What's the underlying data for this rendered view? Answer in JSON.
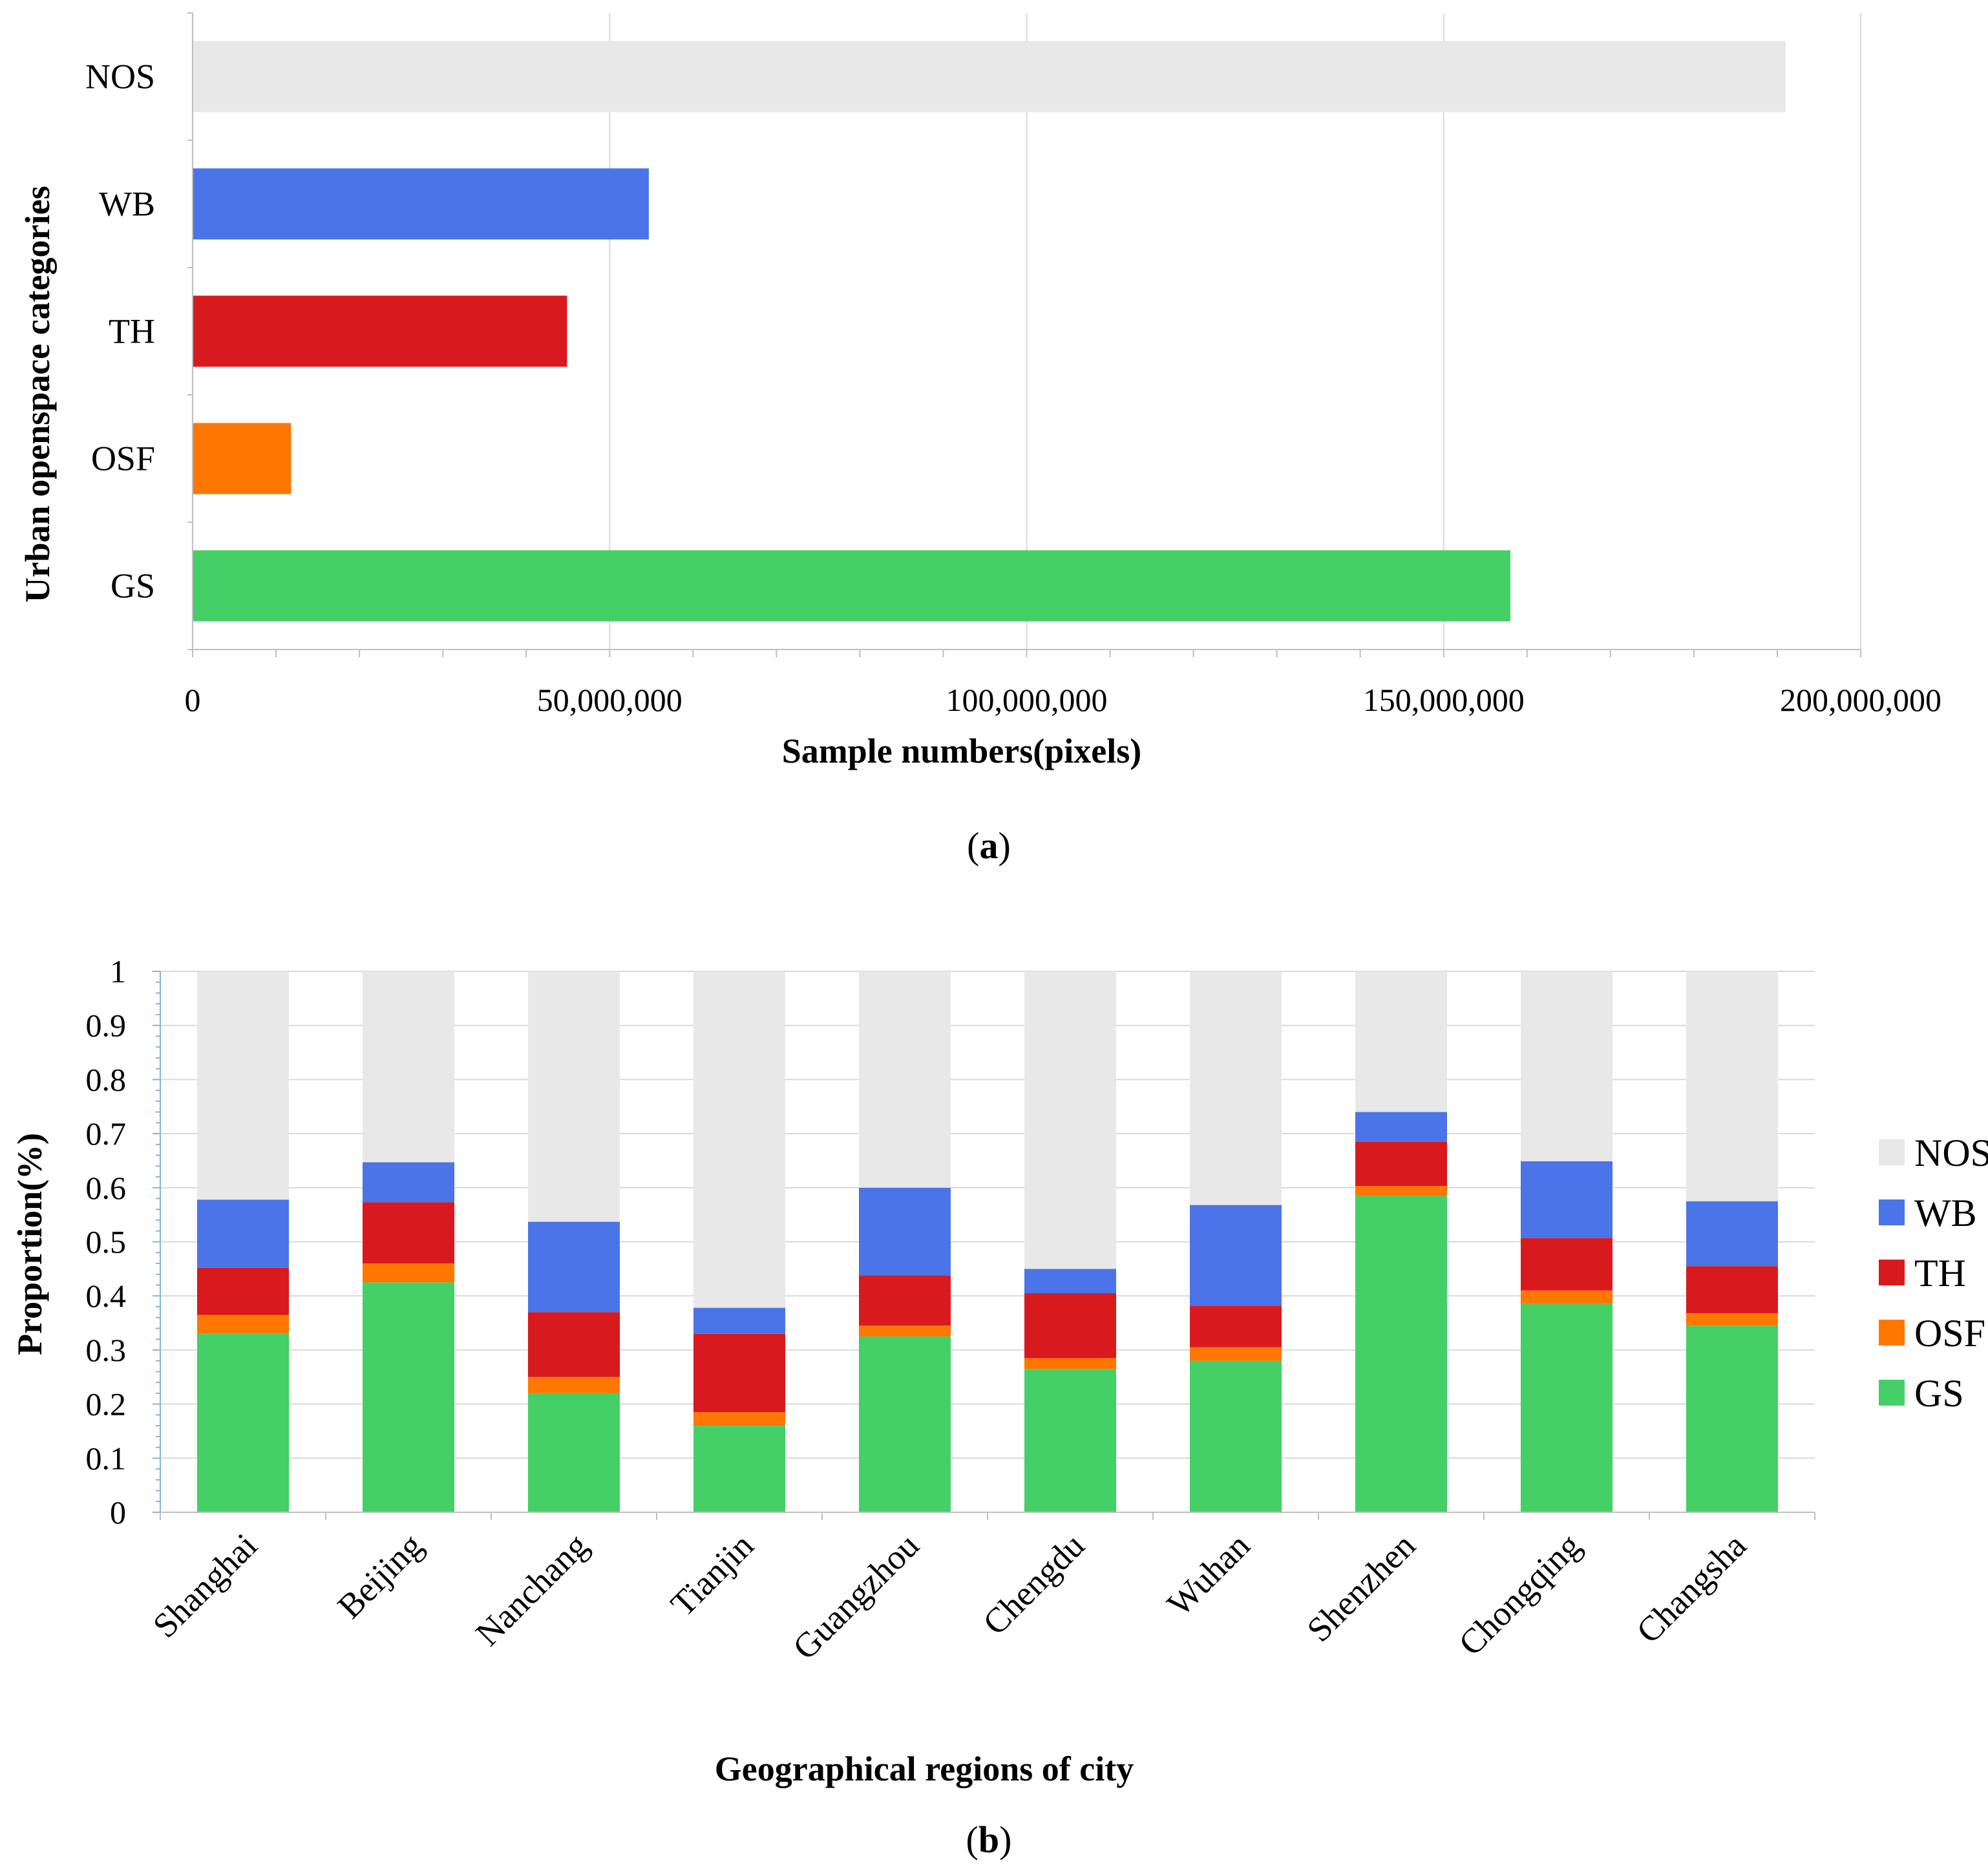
{
  "colors": {
    "NOS": "#e8e8e8",
    "WB": "#4a74e8",
    "TH": "#d81a1e",
    "OSF": "#ff7700",
    "GS": "#44cf67",
    "grid": "#d9d9d9",
    "axis": "#bfbfbf",
    "axis_b": "#7fb7e0"
  },
  "chart_data": [
    {
      "panel": "(a)",
      "panel_open": "(",
      "panel_letter": "a",
      "panel_close": ")",
      "type": "bar",
      "orientation": "horizontal",
      "categories": [
        "NOS",
        "WB",
        "TH",
        "OSF",
        "GS"
      ],
      "values": [
        191000000,
        54700000,
        44900000,
        11800000,
        158000000
      ],
      "xlabel": "Sample numbers(pixels)",
      "ylabel": "Urban openspace categories",
      "xlim": [
        0,
        200000000
      ],
      "xticks": [
        0,
        50000000,
        100000000,
        150000000,
        200000000
      ],
      "xtick_labels": [
        "0",
        "50,000,000",
        "100,000,000",
        "150,000,000",
        "200,000,000"
      ],
      "grid": "vertical"
    },
    {
      "panel": "(b)",
      "panel_open": "(",
      "panel_letter": "b",
      "panel_close": ")",
      "type": "bar",
      "stacked": true,
      "categories": [
        "Shanghai",
        "Beijing",
        "Nanchang",
        "Tianjin",
        "Guangzhou",
        "Chengdu",
        "Wuhan",
        "Shenzhen",
        "Chongqing",
        "Changsha"
      ],
      "series": [
        {
          "name": "GS",
          "values": [
            0.33,
            0.425,
            0.22,
            0.16,
            0.325,
            0.265,
            0.28,
            0.585,
            0.385,
            0.345
          ]
        },
        {
          "name": "OSF",
          "values": [
            0.035,
            0.035,
            0.03,
            0.025,
            0.02,
            0.02,
            0.025,
            0.018,
            0.025,
            0.023
          ]
        },
        {
          "name": "TH",
          "values": [
            0.087,
            0.113,
            0.12,
            0.145,
            0.093,
            0.12,
            0.077,
            0.082,
            0.097,
            0.087
          ]
        },
        {
          "name": "WB",
          "values": [
            0.126,
            0.074,
            0.167,
            0.048,
            0.162,
            0.045,
            0.186,
            0.055,
            0.142,
            0.12
          ]
        },
        {
          "name": "NOS",
          "values": [
            0.422,
            0.353,
            0.463,
            0.622,
            0.4,
            0.55,
            0.432,
            0.26,
            0.351,
            0.425
          ]
        }
      ],
      "xlabel": "Geographical regions of city",
      "ylabel": "Proportion(%)",
      "ylim": [
        0,
        1
      ],
      "yticks": [
        0,
        0.1,
        0.2,
        0.3,
        0.4,
        0.5,
        0.6,
        0.7,
        0.8,
        0.9,
        1
      ],
      "ytick_labels": [
        "0",
        "0.1",
        "0.2",
        "0.3",
        "0.4",
        "0.5",
        "0.6",
        "0.7",
        "0.8",
        "0.9",
        "1"
      ],
      "legend": [
        "NOS",
        "WB",
        "TH",
        "OSF",
        "GS"
      ],
      "legend_position": "right",
      "grid": "horizontal"
    }
  ]
}
